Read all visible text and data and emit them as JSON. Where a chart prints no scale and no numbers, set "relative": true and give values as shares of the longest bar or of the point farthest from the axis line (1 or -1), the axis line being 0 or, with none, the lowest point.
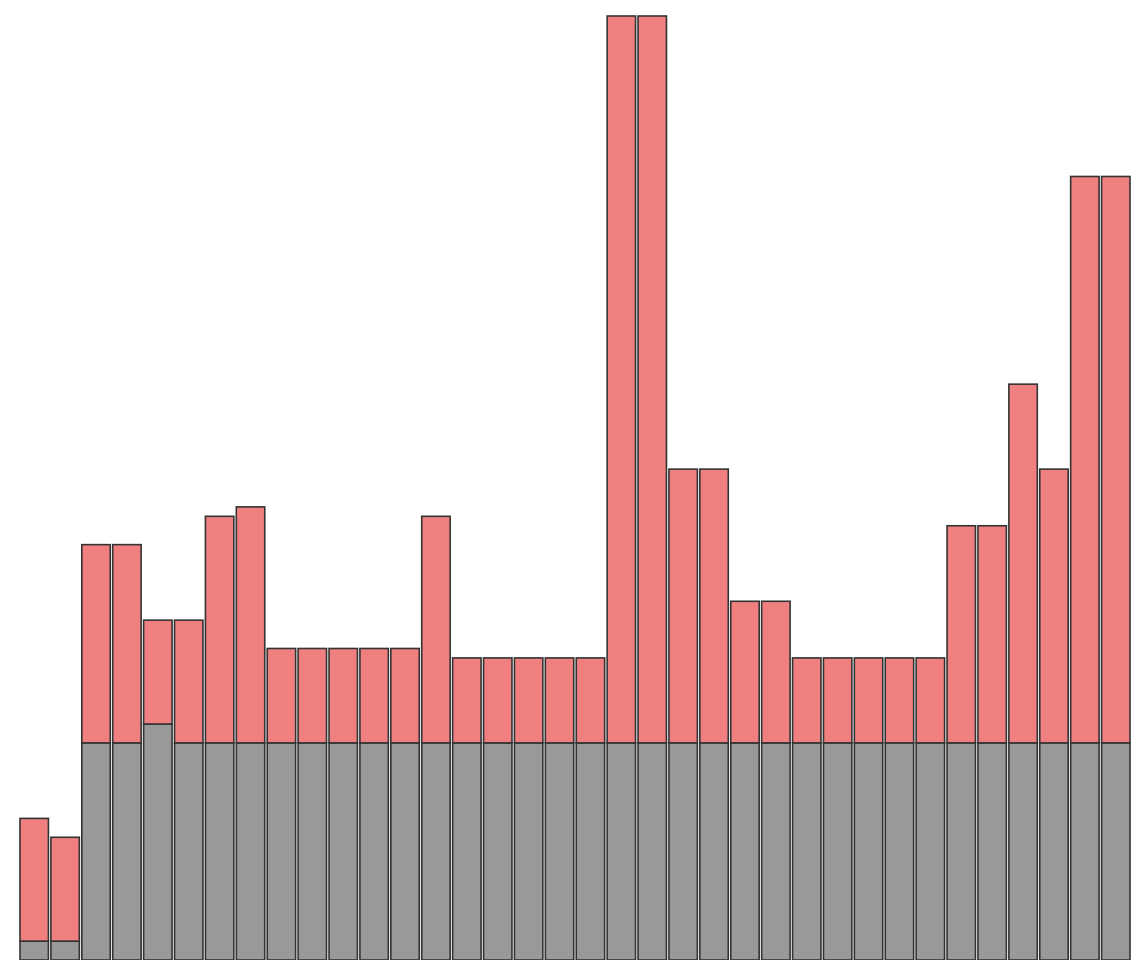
{
  "chart_data": {
    "type": "bar",
    "relative": true,
    "stacked": true,
    "categories": [
      null,
      null,
      null,
      null,
      null,
      null,
      null,
      null,
      null,
      null,
      null,
      null,
      null,
      null,
      null,
      null,
      null,
      null,
      null,
      null,
      null,
      null,
      null,
      null,
      null,
      null,
      null,
      null,
      null,
      null,
      null,
      null,
      null,
      null,
      null,
      null
    ],
    "series": [
      {
        "color": "#999999",
        "values": [
          0.02,
          0.02,
          0.23,
          0.23,
          0.25,
          0.23,
          0.23,
          0.23,
          0.23,
          0.23,
          0.23,
          0.23,
          0.23,
          0.23,
          0.23,
          0.23,
          0.23,
          0.23,
          0.23,
          0.23,
          0.23,
          0.23,
          0.23,
          0.23,
          0.23,
          0.23,
          0.23,
          0.23,
          0.23,
          0.23,
          0.23,
          0.23,
          0.23,
          0.23,
          0.23,
          0.23
        ]
      },
      {
        "color": "#f08080",
        "values": [
          0.13,
          0.11,
          0.21,
          0.21,
          0.11,
          0.13,
          0.24,
          0.25,
          0.1,
          0.1,
          0.1,
          0.1,
          0.1,
          0.24,
          0.09,
          0.09,
          0.09,
          0.09,
          0.09,
          0.77,
          0.77,
          0.29,
          0.29,
          0.15,
          0.15,
          0.09,
          0.09,
          0.09,
          0.09,
          0.09,
          0.23,
          0.23,
          0.38,
          0.29,
          0.6,
          0.6
        ]
      }
    ]
  }
}
